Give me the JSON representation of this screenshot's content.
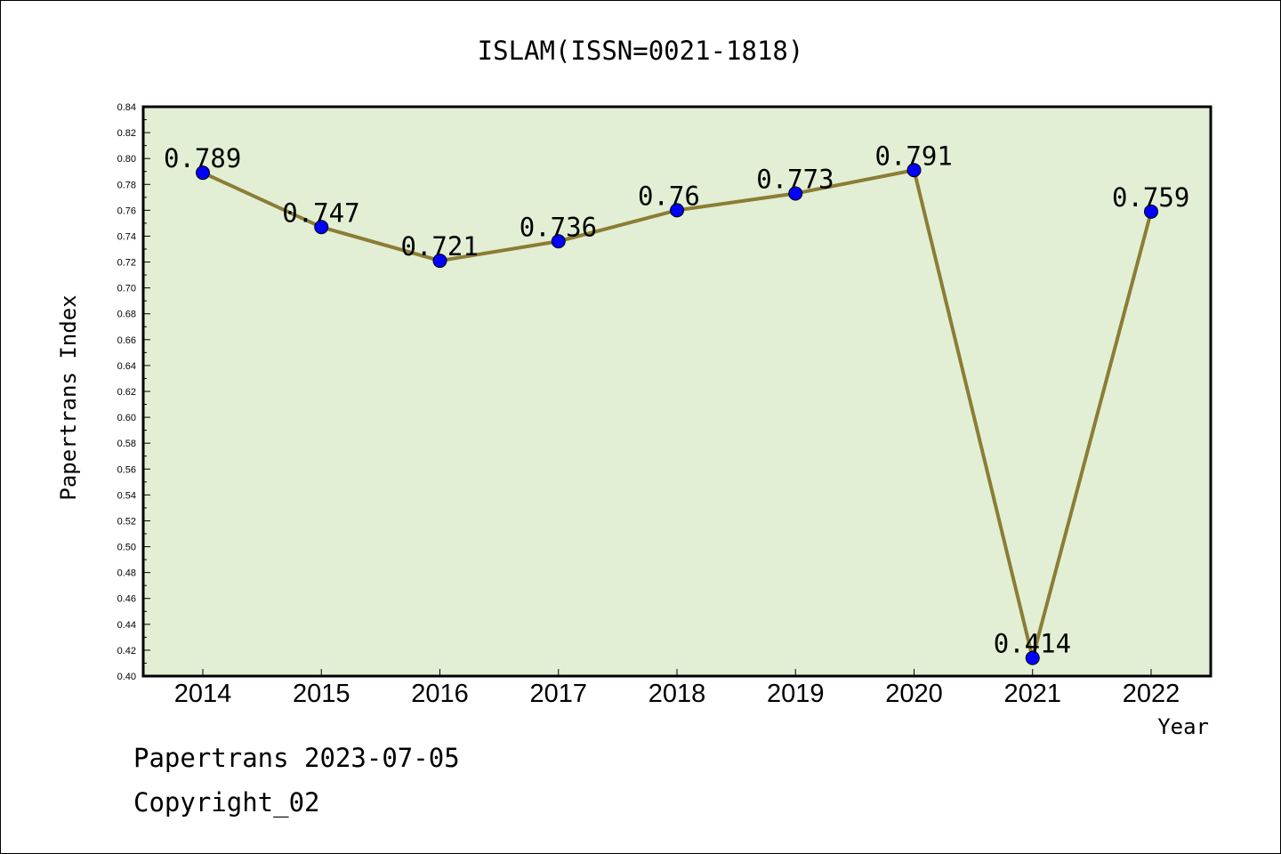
{
  "chart_data": {
    "type": "line",
    "title": "ISLAM(ISSN=0021-1818)",
    "xlabel": "Year",
    "ylabel": "Papertrans Index",
    "categories": [
      "2014",
      "2015",
      "2016",
      "2017",
      "2018",
      "2019",
      "2020",
      "2021",
      "2022"
    ],
    "series": [
      {
        "values": [
          0.789,
          0.747,
          0.721,
          0.736,
          0.76,
          0.773,
          0.791,
          0.414,
          0.759
        ],
        "labels": [
          "0.789",
          "0.747",
          "0.721",
          "0.736",
          "0.76",
          "0.773",
          "0.791",
          "0.414",
          "0.759"
        ]
      }
    ],
    "ylim": [
      0.4,
      0.84
    ],
    "yticks": [
      "0.40",
      "0.42",
      "0.44",
      "0.46",
      "0.48",
      "0.50",
      "0.52",
      "0.54",
      "0.56",
      "0.58",
      "0.60",
      "0.62",
      "0.64",
      "0.66",
      "0.68",
      "0.70",
      "0.72",
      "0.74",
      "0.76",
      "0.78",
      "0.80",
      "0.82",
      "0.84"
    ],
    "grid": false,
    "colors": {
      "plot_background": "#e2efd5",
      "line": "#8b7d35",
      "marker": "#0000ff",
      "axes": "#000000"
    }
  },
  "footer": {
    "line1": "Papertrans 2023-07-05",
    "line2": "Copyright_02"
  }
}
